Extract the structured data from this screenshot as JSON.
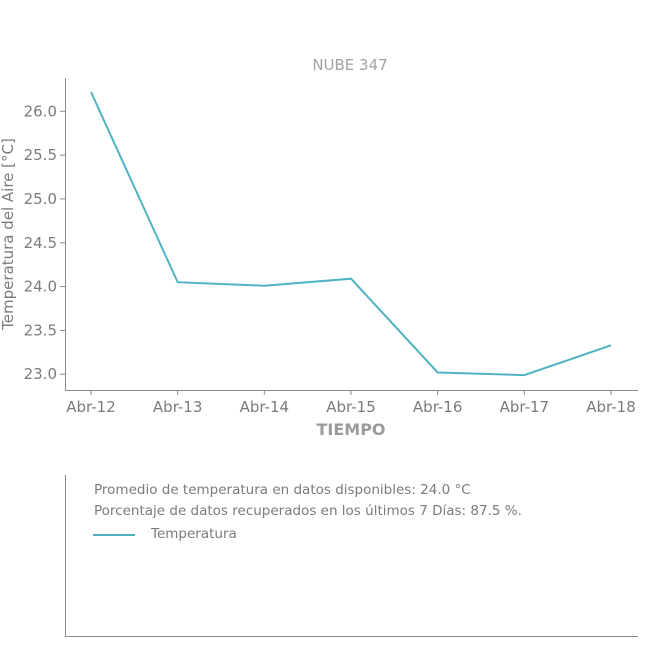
{
  "chart_data": {
    "type": "line",
    "title": "NUBE 347",
    "xlabel": "TIEMPO",
    "ylabel": "Temperatura del Aire [°C]",
    "categories": [
      "Abr-12",
      "Abr-13",
      "Abr-14",
      "Abr-15",
      "Abr-16",
      "Abr-17",
      "Abr-18"
    ],
    "x": [
      "2024-04-12",
      "2024-04-13",
      "2024-04-14",
      "2024-04-15",
      "2024-04-16",
      "2024-04-17",
      "2024-04-18"
    ],
    "series": [
      {
        "name": "Temperatura",
        "values": [
          26.22,
          24.05,
          24.01,
          24.09,
          23.02,
          22.99,
          23.33
        ],
        "color": "#4fb3c3"
      }
    ],
    "yticks": [
      "23.0",
      "23.5",
      "24.0",
      "24.5",
      "25.0",
      "25.5",
      "26.0"
    ],
    "ylim": [
      22.82,
      26.38
    ],
    "grid": false,
    "legend": "bottom-panel"
  },
  "info": {
    "average_text": "Promedio de temperatura en datos disponibles: 24.0 °C",
    "percentage_text": "Porcentaje de datos recuperados en los últimos 7 Días: 87.5 %.",
    "legend_label": "Temperatura"
  }
}
